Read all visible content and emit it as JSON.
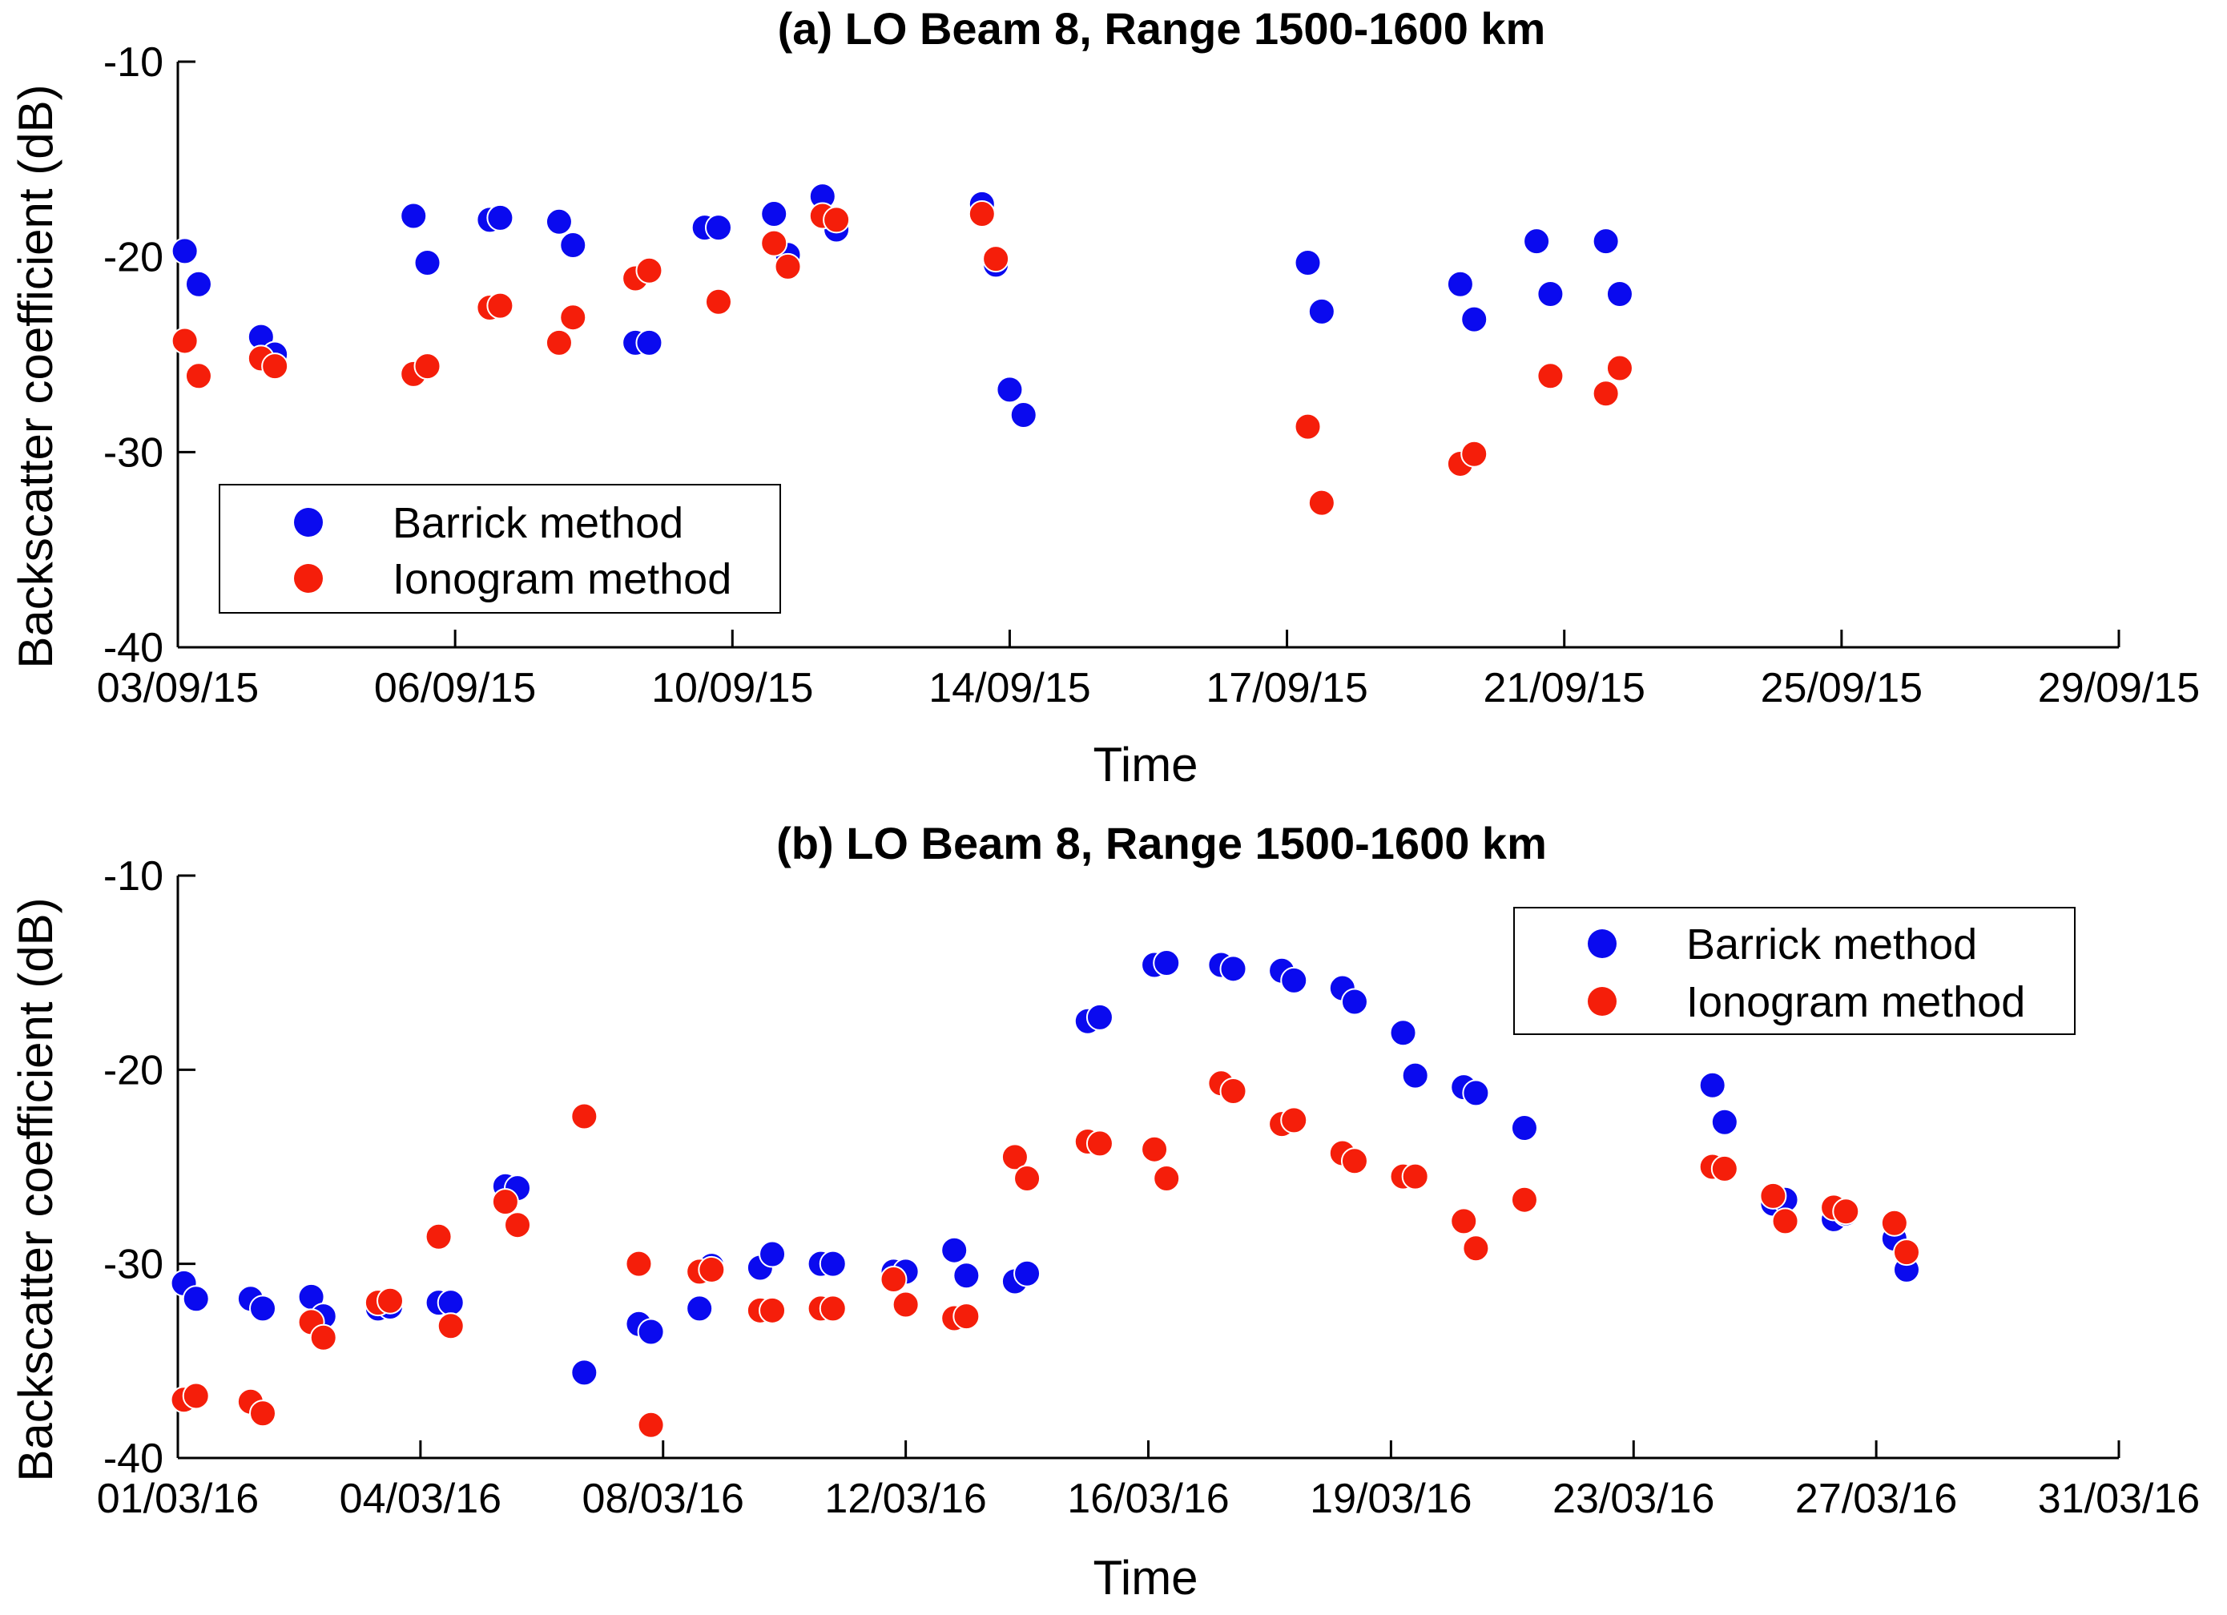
{
  "chart_data": [
    {
      "type": "scatter",
      "title": "(a) LO Beam 8, Range 1500-1600 km",
      "xlabel": "Time",
      "ylabel": "Backscatter coefficient (dB)",
      "xlim": [
        0,
        28
      ],
      "ylim": [
        -40,
        -10
      ],
      "yticks": [
        -10,
        -20,
        -30,
        -40
      ],
      "xticks": [
        0,
        4,
        8,
        12,
        16,
        20,
        24,
        28
      ],
      "xtick_labels": [
        "03/09/15",
        "06/09/15",
        "10/09/15",
        "14/09/15",
        "17/09/15",
        "21/09/15",
        "25/09/15",
        "29/09/15"
      ],
      "legend_position": "bottom-left",
      "series": [
        {
          "name": "Barrick method",
          "color": "#0a0aef",
          "x": [
            0.1,
            0.3,
            1.2,
            1.4,
            3.4,
            3.6,
            4.5,
            4.65,
            5.5,
            5.7,
            6.6,
            6.8,
            7.6,
            7.8,
            8.6,
            8.8,
            9.3,
            9.5,
            11.6,
            11.8,
            12.0,
            12.2,
            16.3,
            16.5,
            18.5,
            18.7,
            19.6,
            19.8,
            20.6,
            20.8
          ],
          "y": [
            -19.7,
            -21.4,
            -24.1,
            -25.0,
            -17.9,
            -20.3,
            -18.1,
            -18.0,
            -18.2,
            -19.4,
            -24.4,
            -24.4,
            -18.5,
            -18.5,
            -17.8,
            -19.9,
            -16.9,
            -18.6,
            -17.3,
            -20.4,
            -26.8,
            -28.1,
            -20.3,
            -22.8,
            -21.4,
            -23.2,
            -19.2,
            -21.9,
            -19.2,
            -21.9
          ]
        },
        {
          "name": "Ionogram method",
          "color": "#f51e0a",
          "x": [
            0.1,
            0.3,
            1.2,
            1.4,
            3.4,
            3.6,
            4.5,
            4.65,
            5.5,
            5.7,
            6.6,
            6.8,
            7.8,
            8.6,
            8.8,
            9.3,
            9.5,
            11.6,
            11.8,
            16.3,
            16.5,
            18.5,
            18.7,
            19.8,
            20.6,
            20.8
          ],
          "y": [
            -24.3,
            -26.1,
            -25.2,
            -25.6,
            -26.0,
            -25.6,
            -22.6,
            -22.5,
            -24.4,
            -23.1,
            -21.1,
            -20.7,
            -22.3,
            -19.3,
            -20.5,
            -17.9,
            -18.1,
            -17.8,
            -20.1,
            -28.7,
            -32.6,
            -30.6,
            -30.1,
            -26.1,
            -27.0,
            -25.7
          ]
        }
      ]
    },
    {
      "type": "scatter",
      "title": "(b) LO Beam 8, Range 1500-1600 km",
      "xlabel": "Time",
      "ylabel": "Backscatter coefficient (dB)",
      "xlim": [
        0,
        32
      ],
      "ylim": [
        -40,
        -10
      ],
      "yticks": [
        -10,
        -20,
        -30,
        -40
      ],
      "xticks": [
        0,
        4,
        8,
        12,
        16,
        20,
        24,
        28,
        32
      ],
      "xtick_labels": [
        "01/03/16",
        "04/03/16",
        "08/03/16",
        "12/03/16",
        "16/03/16",
        "19/03/16",
        "23/03/16",
        "27/03/16",
        "31/03/16"
      ],
      "legend_position": "top-right",
      "series": [
        {
          "name": "Barrick method",
          "color": "#0a0aef",
          "x": [
            0.1,
            0.3,
            1.2,
            1.4,
            2.2,
            2.4,
            3.3,
            3.5,
            4.3,
            4.5,
            5.4,
            5.6,
            6.7,
            7.6,
            7.8,
            8.6,
            8.8,
            9.6,
            9.8,
            10.6,
            10.8,
            11.8,
            12.0,
            12.8,
            13.0,
            13.8,
            14.0,
            15.0,
            15.2,
            16.1,
            16.3,
            17.2,
            17.4,
            18.2,
            18.4,
            19.2,
            19.4,
            20.2,
            20.4,
            21.2,
            21.4,
            22.2,
            25.3,
            25.5,
            26.3,
            26.5,
            27.3,
            27.5,
            28.3,
            28.5
          ],
          "y": [
            -31.0,
            -31.8,
            -31.8,
            -32.3,
            -31.7,
            -32.7,
            -32.3,
            -32.2,
            -32.0,
            -32.0,
            -26.0,
            -26.1,
            -35.6,
            -33.1,
            -33.5,
            -32.3,
            -30.1,
            -30.2,
            -29.5,
            -30.0,
            -30.0,
            -30.4,
            -30.4,
            -29.3,
            -30.6,
            -30.9,
            -30.5,
            -17.5,
            -17.3,
            -14.6,
            -14.5,
            -14.6,
            -14.8,
            -14.9,
            -15.4,
            -15.8,
            -16.5,
            -18.1,
            -20.3,
            -20.9,
            -21.2,
            -23.0,
            -20.8,
            -22.7,
            -26.9,
            -26.7,
            -27.7,
            -27.4,
            -28.7,
            -30.3
          ]
        },
        {
          "name": "Ionogram method",
          "color": "#f51e0a",
          "x": [
            0.1,
            0.3,
            1.2,
            1.4,
            2.2,
            2.4,
            3.3,
            3.5,
            4.3,
            4.5,
            5.4,
            5.6,
            6.7,
            7.6,
            7.8,
            8.6,
            8.8,
            9.6,
            9.8,
            10.6,
            10.8,
            11.8,
            12.0,
            12.8,
            13.0,
            13.8,
            14.0,
            15.0,
            15.2,
            16.1,
            16.3,
            17.2,
            17.4,
            18.2,
            18.4,
            19.2,
            19.4,
            20.2,
            20.4,
            21.2,
            21.4,
            22.2,
            25.3,
            25.5,
            26.3,
            26.5,
            27.3,
            27.5,
            28.3,
            28.5
          ],
          "y": [
            -37.0,
            -36.8,
            -37.1,
            -37.7,
            -33.0,
            -33.8,
            -32.0,
            -31.9,
            -28.6,
            -33.2,
            -26.8,
            -28.0,
            -22.4,
            -30.0,
            -38.3,
            -30.4,
            -30.3,
            -32.4,
            -32.4,
            -32.3,
            -32.3,
            -30.8,
            -32.1,
            -32.8,
            -32.7,
            -24.5,
            -25.6,
            -23.7,
            -23.8,
            -24.1,
            -25.6,
            -20.7,
            -21.1,
            -22.8,
            -22.6,
            -24.3,
            -24.7,
            -25.5,
            -25.5,
            -27.8,
            -29.2,
            -26.7,
            -25.0,
            -25.1,
            -26.5,
            -27.8,
            -27.1,
            -27.3,
            -27.9,
            -29.4
          ]
        }
      ]
    }
  ]
}
